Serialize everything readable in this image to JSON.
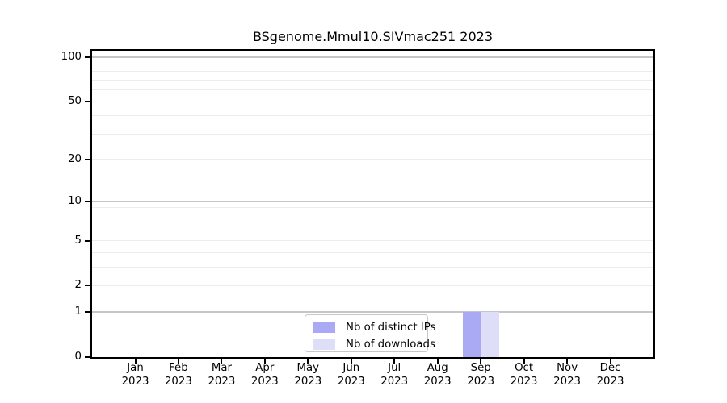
{
  "chart_data": {
    "type": "bar",
    "title": "BSgenome.Mmul10.SIVmac251 2023",
    "categories": [
      "Jan",
      "Feb",
      "Mar",
      "Apr",
      "May",
      "Jun",
      "Jul",
      "Aug",
      "Sep",
      "Oct",
      "Nov",
      "Dec"
    ],
    "year": "2023",
    "series": [
      {
        "name": "Nb of distinct IPs",
        "color": "#a9a9f4",
        "values": [
          0,
          0,
          0,
          0,
          0,
          0,
          0,
          0,
          1,
          0,
          0,
          0
        ]
      },
      {
        "name": "Nb of downloads",
        "color": "#dedef9",
        "values": [
          0,
          0,
          0,
          0,
          0,
          0,
          0,
          0,
          1,
          0,
          0,
          0
        ]
      }
    ],
    "xlabel": "",
    "ylabel": "",
    "y_axis": {
      "ticks": [
        0,
        1,
        2,
        5,
        10,
        20,
        50,
        100
      ],
      "scale": "log10(1+x)",
      "ylim": [
        0,
        111
      ]
    },
    "grid": {
      "orientation": "horizontal",
      "minor_values": [
        2,
        3,
        4,
        5,
        6,
        7,
        8,
        9,
        20,
        30,
        40,
        50,
        60,
        70,
        80,
        90
      ],
      "major_values": [
        1,
        10,
        100
      ],
      "minor_color": "#ececec",
      "major_color": "#c6c6c6"
    },
    "legend": {
      "position": "bottom-center",
      "entries": [
        "Nb of distinct IPs",
        "Nb of downloads"
      ]
    },
    "frame_color": "#000000",
    "background_color": "#ffffff"
  }
}
